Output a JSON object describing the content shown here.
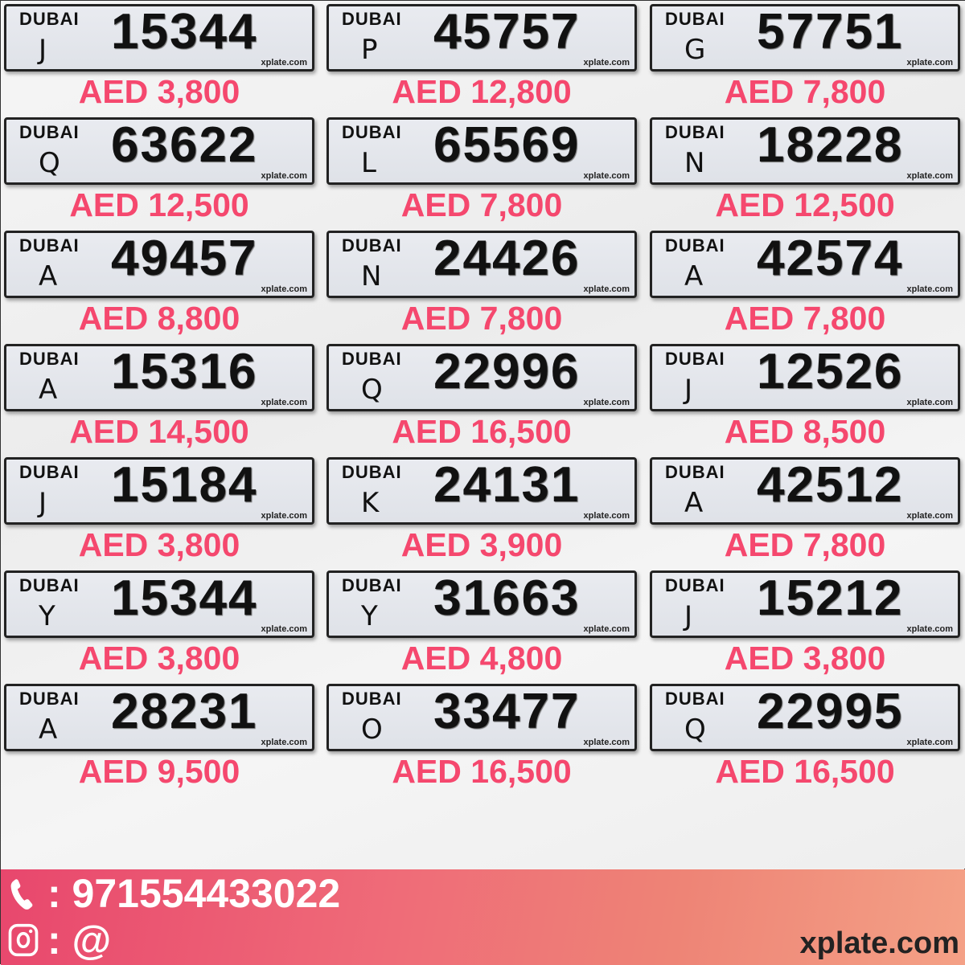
{
  "plate_logo_text": "DUBAI",
  "plate_watermark": "xplate.com",
  "currency": "AED",
  "plates": [
    {
      "letter": "J",
      "number": "15344",
      "price": "AED 3,800"
    },
    {
      "letter": "P",
      "number": "45757",
      "price": "AED 12,800"
    },
    {
      "letter": "G",
      "number": "57751",
      "price": "AED 7,800"
    },
    {
      "letter": "Q",
      "number": "63622",
      "price": "AED 12,500"
    },
    {
      "letter": "L",
      "number": "65569",
      "price": "AED 7,800"
    },
    {
      "letter": "N",
      "number": "18228",
      "price": "AED 12,500"
    },
    {
      "letter": "A",
      "number": "49457",
      "price": "AED 8,800"
    },
    {
      "letter": "N",
      "number": "24426",
      "price": "AED 7,800"
    },
    {
      "letter": "A",
      "number": "42574",
      "price": "AED 7,800"
    },
    {
      "letter": "A",
      "number": "15316",
      "price": "AED 14,500"
    },
    {
      "letter": "Q",
      "number": "22996",
      "price": "AED 16,500"
    },
    {
      "letter": "J",
      "number": "12526",
      "price": "AED 8,500"
    },
    {
      "letter": "J",
      "number": "15184",
      "price": "AED 3,800"
    },
    {
      "letter": "K",
      "number": "24131",
      "price": "AED 3,900"
    },
    {
      "letter": "A",
      "number": "42512",
      "price": "AED 7,800"
    },
    {
      "letter": "Y",
      "number": "15344",
      "price": "AED 3,800"
    },
    {
      "letter": "Y",
      "number": "31663",
      "price": "AED 4,800"
    },
    {
      "letter": "J",
      "number": "15212",
      "price": "AED 3,800"
    },
    {
      "letter": "A",
      "number": "28231",
      "price": "AED 9,500"
    },
    {
      "letter": "O",
      "number": "33477",
      "price": "AED 16,500"
    },
    {
      "letter": "Q",
      "number": "22995",
      "price": "AED 16,500"
    }
  ],
  "footer": {
    "phone_icon": "phone-icon",
    "phone": ": 971554433022",
    "instagram_icon": "instagram-icon",
    "instagram": ": @",
    "brand": "xplate.com"
  },
  "colors": {
    "price": "#f5486e",
    "footer_start": "#e8476d",
    "footer_end": "#f4a186"
  }
}
